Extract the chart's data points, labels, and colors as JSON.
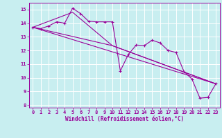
{
  "title": "",
  "xlabel": "Windchill (Refroidissement éolien,°C)",
  "ylabel": "",
  "bg_color": "#c8eef0",
  "grid_color": "#ffffff",
  "line_color": "#990099",
  "xlim": [
    -0.5,
    23.5
  ],
  "ylim": [
    7.8,
    15.5
  ],
  "xticks": [
    0,
    1,
    2,
    3,
    4,
    5,
    6,
    7,
    8,
    9,
    10,
    11,
    12,
    13,
    14,
    15,
    16,
    17,
    18,
    19,
    20,
    21,
    22,
    23
  ],
  "yticks": [
    8,
    9,
    10,
    11,
    12,
    13,
    14,
    15
  ],
  "series1_x": [
    0,
    1,
    2,
    3,
    4,
    5,
    6,
    7,
    8,
    9,
    10,
    11,
    12,
    13,
    14,
    15,
    16,
    17,
    18,
    19,
    20,
    21,
    22,
    23
  ],
  "series1_y": [
    13.7,
    13.6,
    13.8,
    14.1,
    14.0,
    15.1,
    14.7,
    14.15,
    14.1,
    14.1,
    14.1,
    10.5,
    11.7,
    12.4,
    12.35,
    12.75,
    12.55,
    12.0,
    11.85,
    10.45,
    9.9,
    8.5,
    8.55,
    9.55
  ],
  "series2_x": [
    0,
    23
  ],
  "series2_y": [
    13.7,
    9.55
  ],
  "series3_x": [
    0,
    10,
    23
  ],
  "series3_y": [
    13.7,
    12.35,
    9.55
  ],
  "series4_x": [
    0,
    5,
    10,
    23
  ],
  "series4_y": [
    13.7,
    14.8,
    12.35,
    9.55
  ]
}
